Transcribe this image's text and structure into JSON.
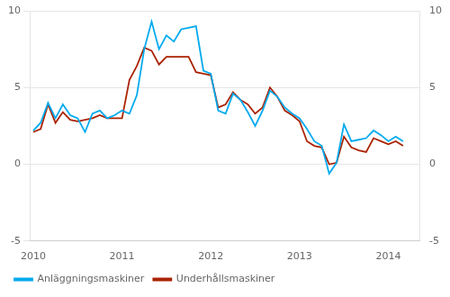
{
  "chart_data": {
    "type": "line",
    "x": [
      2010,
      2010.083333,
      2010.166667,
      2010.25,
      2010.333333,
      2010.416667,
      2010.5,
      2010.583333,
      2010.666667,
      2010.75,
      2010.833333,
      2010.916667,
      2011,
      2011.083333,
      2011.166667,
      2011.25,
      2011.333333,
      2011.416667,
      2011.5,
      2011.583333,
      2011.666667,
      2011.75,
      2011.833333,
      2011.916667,
      2012,
      2012.083333,
      2012.166667,
      2012.25,
      2012.333333,
      2012.416667,
      2012.5,
      2012.583333,
      2012.666667,
      2012.75,
      2012.833333,
      2012.916667,
      2013,
      2013.083333,
      2013.166667,
      2013.25,
      2013.333333,
      2013.416667,
      2013.5,
      2013.583333,
      2013.666667,
      2013.75,
      2013.833333,
      2013.916667,
      2014,
      2014.083333,
      2014.166667
    ],
    "series": [
      {
        "name": "Anläggningsmaskiner",
        "color": "#00AAEE",
        "values": [
          2.2,
          2.7,
          4.0,
          3.0,
          3.9,
          3.2,
          3.0,
          2.1,
          3.3,
          3.5,
          3.0,
          3.2,
          3.5,
          3.3,
          4.5,
          7.5,
          9.3,
          7.5,
          8.4,
          8.0,
          8.8,
          8.9,
          9.0,
          6.1,
          5.9,
          3.5,
          3.3,
          4.6,
          4.2,
          3.4,
          2.5,
          3.5,
          4.8,
          4.4,
          3.7,
          3.3,
          3.0,
          2.3,
          1.5,
          1.2,
          -0.6,
          0.1,
          2.6,
          1.5,
          1.6,
          1.7,
          2.2,
          1.9,
          1.5,
          1.8,
          1.5
        ]
      },
      {
        "name": "Underhållsmaskiner",
        "color": "#AA2200",
        "values": [
          2.1,
          2.3,
          3.9,
          2.7,
          3.4,
          2.9,
          2.8,
          2.9,
          3.0,
          3.2,
          3.0,
          3.0,
          3.0,
          5.5,
          6.4,
          7.6,
          7.4,
          6.5,
          7.0,
          7.0,
          7.0,
          7.0,
          6.0,
          5.9,
          5.8,
          3.7,
          3.9,
          4.7,
          4.2,
          3.9,
          3.3,
          3.7,
          5.0,
          4.4,
          3.5,
          3.2,
          2.8,
          1.5,
          1.2,
          1.1,
          0.0,
          0.1,
          1.8,
          1.1,
          0.9,
          0.8,
          1.7,
          1.5,
          1.3,
          1.5,
          1.2
        ]
      }
    ],
    "xlim": [
      2009.97,
      2014.35
    ],
    "xticks": [
      2010,
      2011,
      2012,
      2013,
      2014
    ],
    "ylim": [
      -5,
      10
    ],
    "yticks": [
      -5,
      0,
      5,
      10
    ],
    "y2lim": [
      -5,
      10
    ],
    "y2ticks": [
      -5,
      0,
      5,
      10
    ],
    "grid": "y",
    "legend": "lower left"
  }
}
